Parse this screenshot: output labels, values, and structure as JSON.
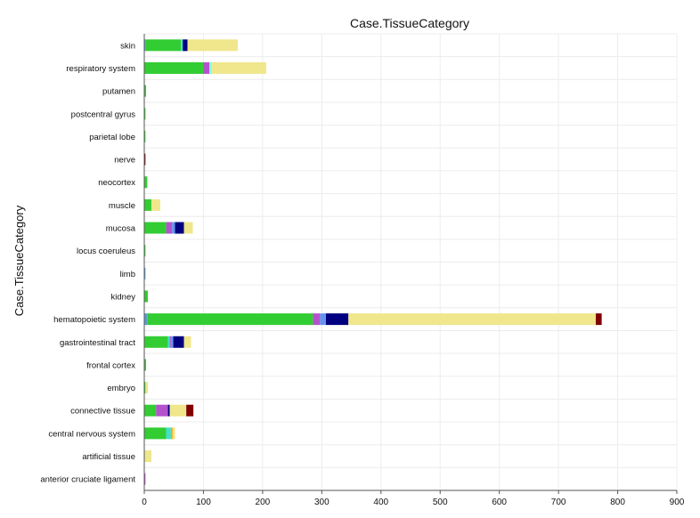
{
  "chart_data": {
    "type": "bar",
    "orientation": "horizontal",
    "stacked": true,
    "title": "Case.TissueCategory",
    "ylabel": "Case.TissueCategory",
    "xlabel": "",
    "xlim": [
      0,
      900
    ],
    "xticks": [
      "0",
      "100",
      "200",
      "300",
      "400",
      "500",
      "600",
      "700",
      "800",
      "900"
    ],
    "grid": true,
    "legend": "none",
    "categories": [
      "skin",
      "respiratory system",
      "putamen",
      "postcentral gyrus",
      "parietal lobe",
      "nerve",
      "neocortex",
      "muscle",
      "mucosa",
      "locus coeruleus",
      "limb",
      "kidney",
      "hematopoietic system",
      "gastrointestinal tract",
      "frontal cortex",
      "embryo",
      "connective tissue",
      "central nervous system",
      "artificial tissue",
      "anterior cruciate ligament"
    ],
    "series": [
      {
        "color": "#5b9bd5",
        "values": [
          2,
          0,
          0,
          0,
          0,
          0,
          0,
          0,
          0,
          0,
          2,
          0,
          5,
          0,
          0,
          0,
          0,
          0,
          0,
          0
        ]
      },
      {
        "color": "#32cd32",
        "values": [
          60,
          100,
          3,
          2,
          2,
          0,
          5,
          12,
          37,
          2,
          0,
          6,
          280,
          40,
          3,
          2,
          20,
          37,
          0,
          0
        ]
      },
      {
        "color": "#40e0d0",
        "values": [
          3,
          0,
          0,
          0,
          0,
          0,
          0,
          0,
          0,
          0,
          0,
          0,
          0,
          3,
          0,
          0,
          0,
          8,
          0,
          0
        ]
      },
      {
        "color": "#b452cd",
        "values": [
          0,
          10,
          0,
          0,
          0,
          0,
          0,
          0,
          10,
          0,
          0,
          0,
          12,
          2,
          0,
          0,
          20,
          0,
          0,
          2
        ]
      },
      {
        "color": "#6495ed",
        "values": [
          0,
          0,
          0,
          0,
          0,
          0,
          0,
          0,
          5,
          0,
          0,
          0,
          10,
          4,
          0,
          0,
          0,
          0,
          0,
          0
        ]
      },
      {
        "color": "#7fffd4",
        "values": [
          0,
          4,
          0,
          0,
          0,
          0,
          0,
          0,
          0,
          0,
          0,
          0,
          0,
          0,
          0,
          0,
          0,
          0,
          0,
          0
        ]
      },
      {
        "color": "#000080",
        "values": [
          8,
          0,
          0,
          0,
          0,
          0,
          0,
          0,
          15,
          0,
          0,
          0,
          38,
          18,
          0,
          0,
          3,
          0,
          0,
          0
        ]
      },
      {
        "color": "#ffa500",
        "values": [
          0,
          0,
          0,
          0,
          0,
          0,
          0,
          0,
          0,
          0,
          0,
          0,
          0,
          0,
          0,
          0,
          0,
          3,
          0,
          0
        ]
      },
      {
        "color": "#f0e68c",
        "values": [
          85,
          92,
          0,
          0,
          0,
          0,
          0,
          15,
          15,
          0,
          0,
          0,
          418,
          12,
          0,
          4,
          28,
          4,
          12,
          0
        ]
      },
      {
        "color": "#800000",
        "values": [
          0,
          0,
          0,
          0,
          0,
          2,
          0,
          0,
          0,
          0,
          0,
          0,
          10,
          0,
          0,
          0,
          12,
          0,
          0,
          0
        ]
      }
    ]
  }
}
